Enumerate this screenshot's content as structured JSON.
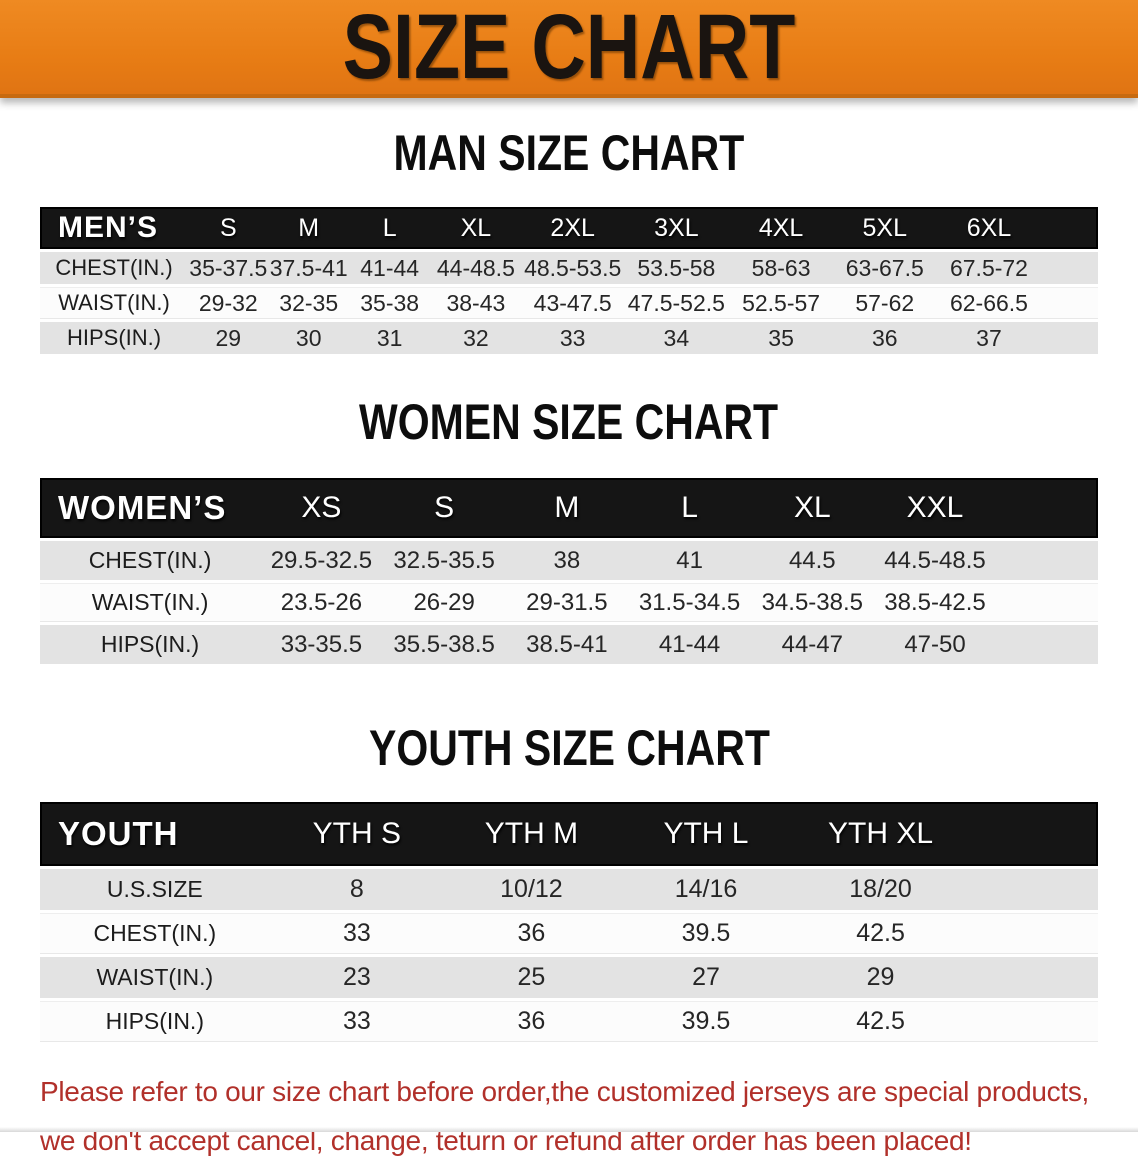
{
  "banner": {
    "title": "SIZE CHART",
    "bg_color": "#e87d15",
    "title_color": "#1a1410"
  },
  "sections": [
    {
      "id": "men",
      "heading": "MAN SIZE CHART",
      "corner_label": "MEN’S",
      "columns": [
        "S",
        "M",
        "L",
        "XL",
        "2XL",
        "3XL",
        "4XL",
        "5XL",
        "6XL"
      ],
      "rows": [
        {
          "label": "CHEST(IN.)",
          "values": [
            "35-37.5",
            "37.5-41",
            "41-44",
            "44-48.5",
            "48.5-53.5",
            "53.5-58",
            "58-63",
            "63-67.5",
            "67.5-72"
          ]
        },
        {
          "label": "WAIST(IN.)",
          "values": [
            "29-32",
            "32-35",
            "35-38",
            "38-43",
            "43-47.5",
            "47.5-52.5",
            "52.5-57",
            "57-62",
            "62-66.5"
          ]
        },
        {
          "label": "HIPS(IN.)",
          "values": [
            "29",
            "30",
            "31",
            "32",
            "33",
            "34",
            "35",
            "36",
            "37"
          ]
        }
      ]
    },
    {
      "id": "women",
      "heading": "WOMEN SIZE CHART",
      "corner_label": "WOMEN’S",
      "columns": [
        "XS",
        "S",
        "M",
        "L",
        "XL",
        "XXL"
      ],
      "rows": [
        {
          "label": "CHEST(IN.)",
          "values": [
            "29.5-32.5",
            "32.5-35.5",
            "38",
            "41",
            "44.5",
            "44.5-48.5"
          ]
        },
        {
          "label": "WAIST(IN.)",
          "values": [
            "23.5-26",
            "26-29",
            "29-31.5",
            "31.5-34.5",
            "34.5-38.5",
            "38.5-42.5"
          ]
        },
        {
          "label": "HIPS(IN.)",
          "values": [
            "33-35.5",
            "35.5-38.5",
            "38.5-41",
            "41-44",
            "44-47",
            "47-50"
          ]
        }
      ]
    },
    {
      "id": "youth",
      "heading": "YOUTH SIZE CHART",
      "corner_label": "YOUTH",
      "columns": [
        "YTH S",
        "YTH M",
        "YTH L",
        "YTH XL"
      ],
      "rows": [
        {
          "label": "U.S.SIZE",
          "values": [
            "8",
            "10/12",
            "14/16",
            "18/20"
          ]
        },
        {
          "label": "CHEST(IN.)",
          "values": [
            "33",
            "36",
            "39.5",
            "42.5"
          ]
        },
        {
          "label": "WAIST(IN.)",
          "values": [
            "23",
            "25",
            "27",
            "29"
          ]
        },
        {
          "label": "HIPS(IN.)",
          "values": [
            "33",
            "36",
            "39.5",
            "42.5"
          ]
        }
      ]
    }
  ],
  "disclaimer": {
    "lines": [
      "Please refer to our size chart before order,the customized jerseys are special products,",
      "we don't accept cancel, change, teturn or refund after order has been placed!"
    ],
    "color": "#b1302a"
  }
}
